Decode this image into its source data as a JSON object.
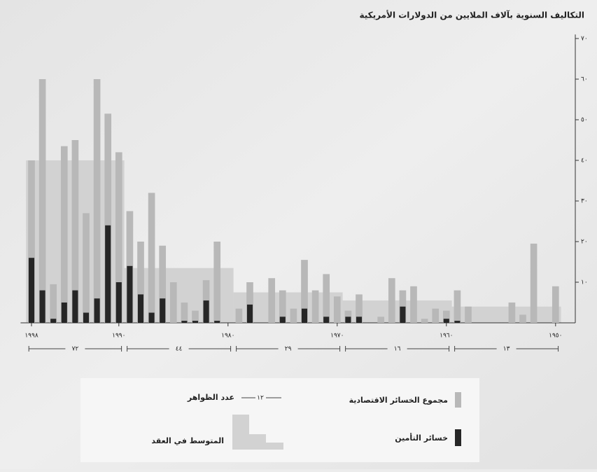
{
  "chart_data": {
    "type": "bar",
    "title": "التكاليف السنوية بآلاف الملايين من الدولارات الأمريكية",
    "x": [
      1950,
      1951,
      1952,
      1953,
      1954,
      1955,
      1956,
      1957,
      1958,
      1959,
      1960,
      1961,
      1962,
      1963,
      1964,
      1965,
      1966,
      1967,
      1968,
      1969,
      1970,
      1971,
      1972,
      1973,
      1974,
      1975,
      1976,
      1977,
      1978,
      1979,
      1980,
      1981,
      1982,
      1983,
      1984,
      1985,
      1986,
      1987,
      1988,
      1989,
      1990,
      1991,
      1992,
      1993,
      1994,
      1995,
      1996,
      1997,
      1998
    ],
    "xlim": [
      1999,
      1949
    ],
    "xticks": [
      {
        "value": 1998,
        "label": "١٩٩٨"
      },
      {
        "value": 1990,
        "label": "١٩٩٠"
      },
      {
        "value": 1980,
        "label": "١٩٨٠"
      },
      {
        "value": 1970,
        "label": "١٩٧٠"
      },
      {
        "value": 1960,
        "label": "١٩٦٠"
      },
      {
        "value": 1950,
        "label": "١٩٥٠"
      }
    ],
    "ylim": [
      0,
      71
    ],
    "yticks": [
      {
        "value": 10,
        "label": "١٠"
      },
      {
        "value": 20,
        "label": "٢٠"
      },
      {
        "value": 30,
        "label": "٣٠"
      },
      {
        "value": 40,
        "label": "٤٠"
      },
      {
        "value": 50,
        "label": "٥٠"
      },
      {
        "value": 60,
        "label": "٦٠"
      },
      {
        "value": 70,
        "label": "٧٠"
      }
    ],
    "y_axis_side": "right",
    "grid": false,
    "series": [
      {
        "name": "مجموع الخسائر الاقتصادية",
        "color": "#b8b8b8",
        "values": [
          9,
          null,
          19.5,
          2,
          5,
          null,
          null,
          null,
          4,
          8,
          3,
          3.5,
          1,
          9,
          8,
          11,
          1.5,
          null,
          7,
          3,
          6.5,
          12,
          8,
          15.5,
          3.5,
          8,
          11,
          null,
          10,
          3.5,
          null,
          20,
          10.5,
          3,
          5,
          10,
          19,
          32,
          20,
          27.5,
          42,
          51.5,
          60,
          27,
          45,
          43.5,
          9.5,
          60,
          40
        ]
      },
      {
        "name": "خسائر التأمين",
        "color": "#262626",
        "values": [
          null,
          null,
          null,
          null,
          null,
          null,
          null,
          null,
          null,
          0.5,
          1,
          null,
          null,
          null,
          4,
          null,
          null,
          null,
          1.5,
          1.5,
          null,
          1.5,
          null,
          3.5,
          null,
          1.5,
          null,
          null,
          4.5,
          null,
          null,
          0.5,
          5.5,
          0.5,
          0.5,
          null,
          6,
          2.5,
          7,
          14,
          10,
          24,
          6,
          2.5,
          8,
          5,
          1,
          8,
          16
        ]
      }
    ],
    "decades": {
      "name": "المتوسط في العقد",
      "color": "#d2d2d2",
      "ranges": [
        [
          1990,
          1998
        ],
        [
          1980,
          1989
        ],
        [
          1970,
          1979
        ],
        [
          1960,
          1969
        ],
        [
          1950,
          1959
        ]
      ],
      "averages": [
        40,
        13.5,
        7.5,
        5.5,
        4
      ],
      "count_name": "عدد الظواهر",
      "counts": [
        {
          "value": 72,
          "label": "٧٢"
        },
        {
          "value": 44,
          "label": "٤٤"
        },
        {
          "value": 29,
          "label": "٢٩"
        },
        {
          "value": 16,
          "label": "١٦"
        },
        {
          "value": 13,
          "label": "١٣"
        }
      ]
    },
    "legend": {
      "count_sample": "١٢"
    }
  }
}
